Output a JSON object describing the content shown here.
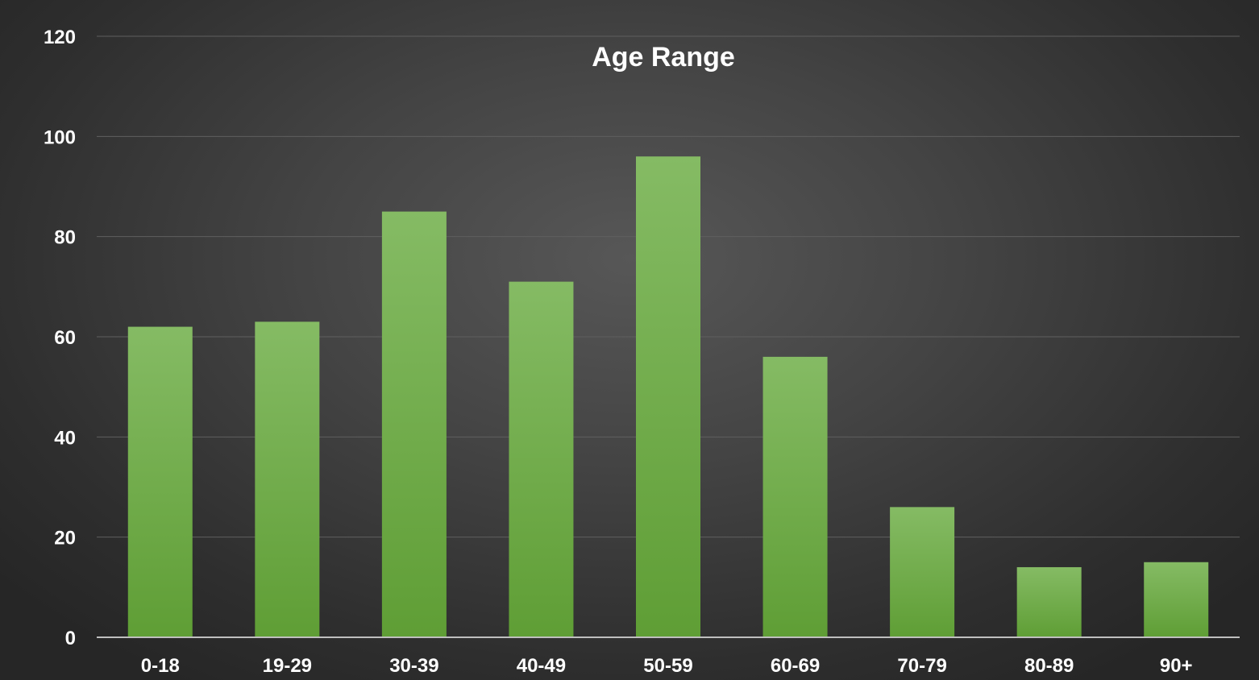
{
  "chart_data": {
    "type": "bar",
    "title": "Age Range",
    "categories": [
      "0-18",
      "19-29",
      "30-39",
      "40-49",
      "50-59",
      "60-69",
      "70-79",
      "80-89",
      "90+"
    ],
    "values": [
      62,
      63,
      85,
      71,
      96,
      56,
      26,
      14,
      15
    ],
    "ylim": [
      0,
      120
    ],
    "yticks": [
      0,
      20,
      40,
      60,
      80,
      100,
      120
    ],
    "xlabel": "",
    "ylabel": "",
    "grid": true,
    "legend": "none",
    "colors": {
      "bar_top": "#85bb64",
      "bar_bottom": "#5f9e35",
      "background": "#404040",
      "text": "#ffffff"
    }
  }
}
